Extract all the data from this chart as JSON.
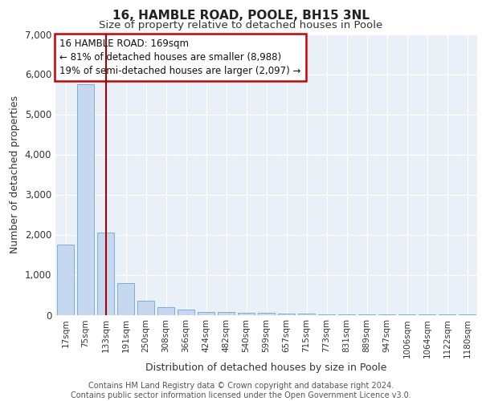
{
  "title": "16, HAMBLE ROAD, POOLE, BH15 3NL",
  "subtitle": "Size of property relative to detached houses in Poole",
  "xlabel": "Distribution of detached houses by size in Poole",
  "ylabel": "Number of detached properties",
  "categories": [
    "17sqm",
    "75sqm",
    "133sqm",
    "191sqm",
    "250sqm",
    "308sqm",
    "366sqm",
    "424sqm",
    "482sqm",
    "540sqm",
    "599sqm",
    "657sqm",
    "715sqm",
    "773sqm",
    "831sqm",
    "889sqm",
    "947sqm",
    "1006sqm",
    "1064sqm",
    "1122sqm",
    "1180sqm"
  ],
  "values": [
    1750,
    5750,
    2050,
    800,
    350,
    200,
    130,
    80,
    75,
    50,
    50,
    30,
    30,
    20,
    15,
    10,
    8,
    5,
    3,
    2,
    2
  ],
  "bar_color": "#c5d8ef",
  "bar_edge_color": "#7aafd4",
  "marker_index": 2,
  "marker_color": "#aa0000",
  "ylim": [
    0,
    7000
  ],
  "yticks": [
    0,
    1000,
    2000,
    3000,
    4000,
    5000,
    6000,
    7000
  ],
  "annotation_text": "16 HAMBLE ROAD: 169sqm\n← 81% of detached houses are smaller (8,988)\n19% of semi-detached houses are larger (2,097) →",
  "annotation_box_color": "#ffffff",
  "annotation_box_edge_color": "#cc0000",
  "footer_text": "Contains HM Land Registry data © Crown copyright and database right 2024.\nContains public sector information licensed under the Open Government Licence v3.0.",
  "bg_color": "#eaf0f8",
  "grid_color": "#ffffff",
  "title_fontsize": 11,
  "subtitle_fontsize": 9.5,
  "tick_fontsize": 7.5,
  "ylabel_fontsize": 9,
  "xlabel_fontsize": 9,
  "footer_fontsize": 7,
  "annotation_fontsize": 8.5
}
